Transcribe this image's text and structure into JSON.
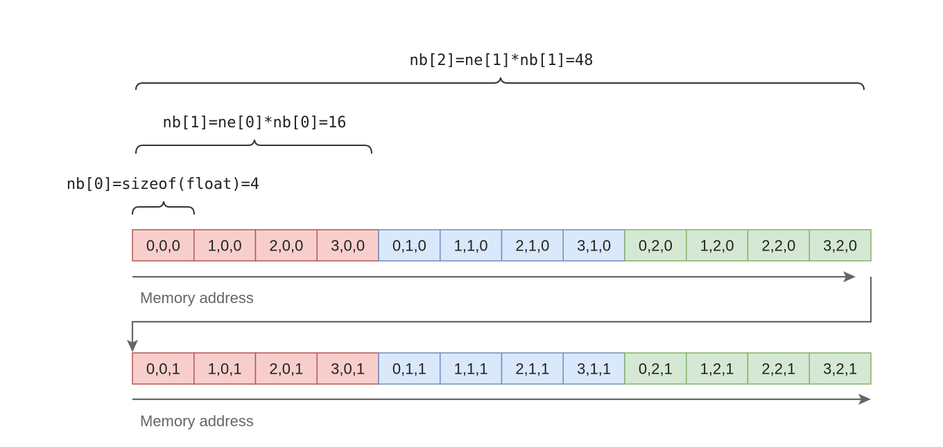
{
  "braces": [
    {
      "label": "nb[2]=ne[1]*nb[1]=48"
    },
    {
      "label": "nb[1]=ne[0]*nb[0]=16"
    },
    {
      "label": "nb[0]=sizeof(float)=4"
    }
  ],
  "colors": {
    "red_fill": "#f8cecc",
    "red_stroke": "#b85450",
    "blue_fill": "#dae8fc",
    "blue_stroke": "#6c8ebf",
    "green_fill": "#d5e8d4",
    "green_stroke": "#82b366",
    "arrow": "#666666"
  },
  "rows": [
    {
      "cells": [
        {
          "label": "0,0,0",
          "group": "red"
        },
        {
          "label": "1,0,0",
          "group": "red"
        },
        {
          "label": "2,0,0",
          "group": "red"
        },
        {
          "label": "3,0,0",
          "group": "red"
        },
        {
          "label": "0,1,0",
          "group": "blue"
        },
        {
          "label": "1,1,0",
          "group": "blue"
        },
        {
          "label": "2,1,0",
          "group": "blue"
        },
        {
          "label": "3,1,0",
          "group": "blue"
        },
        {
          "label": "0,2,0",
          "group": "green"
        },
        {
          "label": "1,2,0",
          "group": "green"
        },
        {
          "label": "2,2,0",
          "group": "green"
        },
        {
          "label": "3,2,0",
          "group": "green"
        }
      ],
      "axis_label": "Memory address"
    },
    {
      "cells": [
        {
          "label": "0,0,1",
          "group": "red"
        },
        {
          "label": "1,0,1",
          "group": "red"
        },
        {
          "label": "2,0,1",
          "group": "red"
        },
        {
          "label": "3,0,1",
          "group": "red"
        },
        {
          "label": "0,1,1",
          "group": "blue"
        },
        {
          "label": "1,1,1",
          "group": "blue"
        },
        {
          "label": "2,1,1",
          "group": "blue"
        },
        {
          "label": "3,1,1",
          "group": "blue"
        },
        {
          "label": "0,2,1",
          "group": "green"
        },
        {
          "label": "1,2,1",
          "group": "green"
        },
        {
          "label": "2,2,1",
          "group": "green"
        },
        {
          "label": "3,2,1",
          "group": "green"
        }
      ],
      "axis_label": "Memory address"
    }
  ]
}
